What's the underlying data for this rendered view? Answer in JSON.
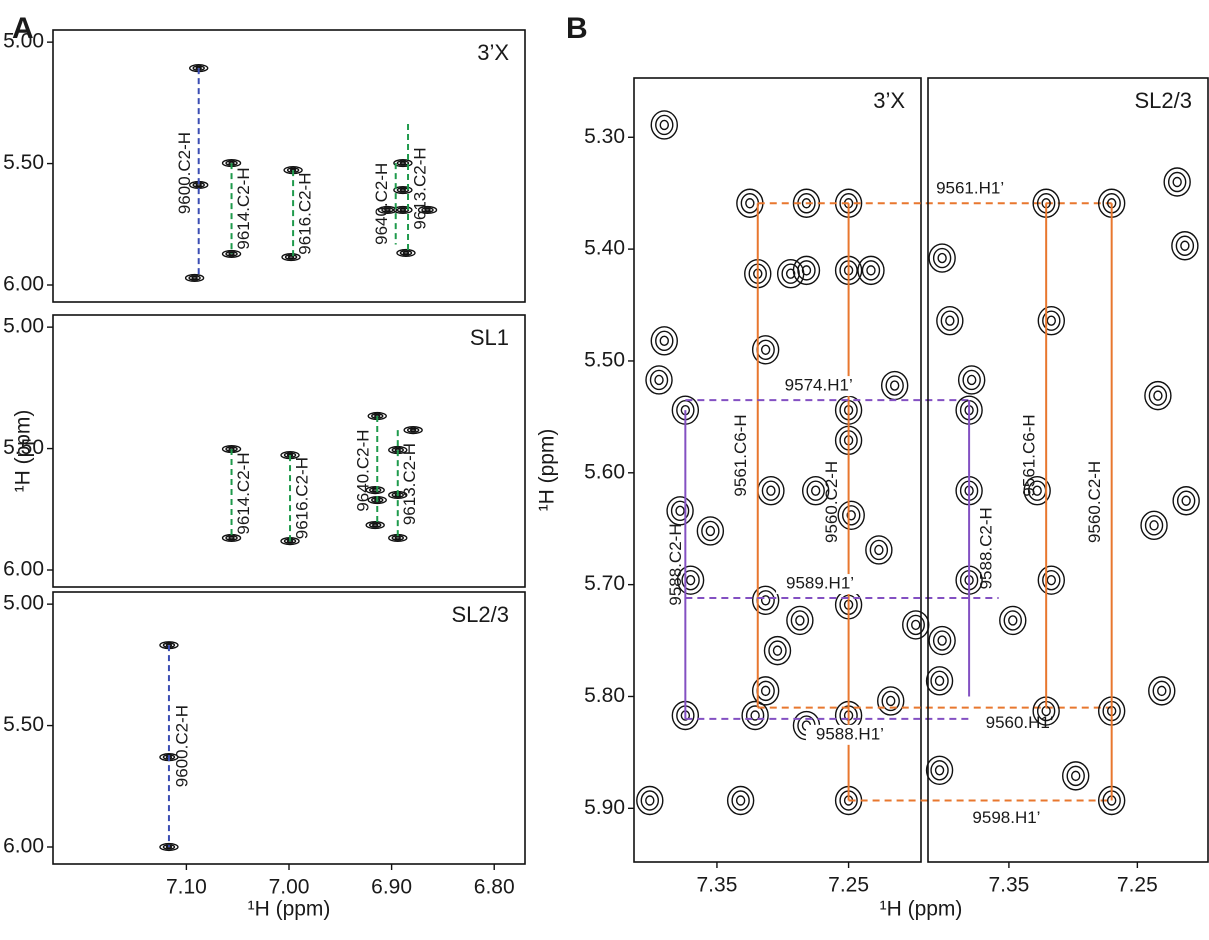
{
  "panel_labels": [
    "A",
    "B"
  ],
  "chart_data": [
    {
      "type": "scatter",
      "title": "3’X",
      "xlim": [
        7.23,
        6.77
      ],
      "ylim": [
        4.95,
        6.07
      ],
      "yticks": [
        {
          "value": 5,
          "label": "5.00"
        },
        {
          "value": 5.5,
          "label": "5.50"
        },
        {
          "value": 6,
          "label": "6.00"
        }
      ],
      "x": [
        7.088,
        7.088,
        7.092,
        7.056,
        7.056,
        6.996,
        6.998,
        6.889,
        6.889,
        6.889,
        6.904,
        6.865,
        6.886
      ],
      "values": [
        5.107,
        5.588,
        5.971,
        5.498,
        5.872,
        5.527,
        5.885,
        5.498,
        5.609,
        5.691,
        5.691,
        5.691,
        5.868
      ],
      "vlines": [
        {
          "label": "9600.C2-H",
          "color": "#3b4db3",
          "x": 7.088,
          "y": [
            5.107,
            5.971
          ]
        },
        {
          "label": "9614.C2-H",
          "color": "#1f9a4c",
          "x": 7.056,
          "y": [
            5.498,
            5.872
          ]
        },
        {
          "label": "9616.C2-H",
          "color": "#1f9a4c",
          "x": 6.996,
          "y": [
            5.527,
            5.885
          ]
        },
        {
          "label": "9640.C2-H",
          "color": "#1f9a4c",
          "x": 6.896,
          "y": [
            5.498,
            5.833
          ]
        },
        {
          "label": "9613.C2-H",
          "color": "#1f9a4c",
          "x": 6.884,
          "y": [
            5.337,
            5.868
          ]
        }
      ]
    },
    {
      "type": "scatter",
      "title": "SL1",
      "xlim": [
        7.23,
        6.77
      ],
      "ylim": [
        4.95,
        6.07
      ],
      "ylabel": "¹H (ppm)",
      "yticks": [
        {
          "value": 5,
          "label": "5.00"
        },
        {
          "value": 5.5,
          "label": "5.50"
        },
        {
          "value": 6,
          "label": "6.00"
        }
      ],
      "x": [
        7.056,
        7.056,
        6.999,
        6.999,
        6.914,
        6.916,
        6.914,
        6.916,
        6.894,
        6.894,
        6.894,
        6.879
      ],
      "values": [
        5.502,
        5.868,
        5.527,
        5.881,
        5.366,
        5.671,
        5.712,
        5.815,
        5.506,
        5.691,
        5.868,
        5.424
      ],
      "vlines": [
        {
          "label": "9614.C2-H",
          "color": "#1f9a4c",
          "x": 7.056,
          "y": [
            5.502,
            5.868
          ]
        },
        {
          "label": "9616.C2-H",
          "color": "#1f9a4c",
          "x": 6.999,
          "y": [
            5.527,
            5.881
          ]
        },
        {
          "label": "9640.C2-H",
          "color": "#1f9a4c",
          "x": 6.914,
          "y": [
            5.366,
            5.815
          ]
        },
        {
          "label": "9613.C2-H",
          "color": "#1f9a4c",
          "x": 6.894,
          "y": [
            5.424,
            5.868
          ]
        }
      ]
    },
    {
      "type": "scatter",
      "title": "SL2/3",
      "xlim": [
        7.23,
        6.77
      ],
      "ylim": [
        4.95,
        6.07
      ],
      "xlabel": "¹H (ppm)",
      "xticks": [
        {
          "value": 7.1,
          "label": "7.10"
        },
        {
          "value": 7,
          "label": "7.00"
        },
        {
          "value": 6.9,
          "label": "6.90"
        },
        {
          "value": 6.8,
          "label": "6.80"
        }
      ],
      "yticks": [
        {
          "value": 5,
          "label": "5.00"
        },
        {
          "value": 5.5,
          "label": "5.50"
        },
        {
          "value": 6,
          "label": "6.00"
        }
      ],
      "x": [
        7.117,
        7.117,
        7.117
      ],
      "values": [
        5.169,
        5.63,
        6.0
      ],
      "vlines": [
        {
          "label": "9600.C2-H",
          "color": "#3b4db3",
          "x": 7.117,
          "y": [
            5.169,
            6.0
          ]
        }
      ]
    },
    {
      "type": "scatter",
      "title": "3’X",
      "xlim": [
        7.413,
        7.195
      ],
      "ylim": [
        5.247,
        5.948
      ],
      "xlabel": "¹H (ppm)",
      "ylabel": "¹H (ppm)",
      "xticks": [
        7.35,
        7.25
      ],
      "yticks": [
        {
          "value": 5.3,
          "label": "5.30"
        },
        {
          "value": 5.4,
          "label": "5.40"
        },
        {
          "value": 5.5,
          "label": "5.50"
        },
        {
          "value": 5.6,
          "label": "5.60"
        },
        {
          "value": 5.7,
          "label": "5.70"
        },
        {
          "value": 5.8,
          "label": "5.80"
        },
        {
          "value": 5.9,
          "label": "5.90"
        }
      ],
      "x": [
        7.39,
        7.325,
        7.282,
        7.25,
        7.319,
        7.294,
        7.282,
        7.25,
        7.233,
        7.39,
        7.313,
        7.394,
        7.374,
        7.25,
        7.215,
        7.25,
        7.309,
        7.378,
        7.355,
        7.275,
        7.248,
        7.227,
        7.37,
        7.313,
        7.287,
        7.304,
        7.25,
        7.374,
        7.321,
        7.313,
        7.25,
        7.282,
        7.218,
        7.401,
        7.332,
        7.25,
        7.199
      ],
      "values": [
        5.289,
        5.359,
        5.359,
        5.359,
        5.422,
        5.422,
        5.419,
        5.419,
        5.419,
        5.482,
        5.49,
        5.517,
        5.544,
        5.544,
        5.522,
        5.571,
        5.616,
        5.634,
        5.652,
        5.616,
        5.638,
        5.669,
        5.696,
        5.714,
        5.732,
        5.759,
        5.718,
        5.817,
        5.817,
        5.795,
        5.817,
        5.826,
        5.804,
        5.893,
        5.893,
        5.893,
        5.736
      ],
      "vlines": [
        {
          "label": "9561.C6-H",
          "color": "#e8772e",
          "x": 7.319,
          "y": [
            5.359,
            5.81
          ]
        },
        {
          "label": "9560.C2-H",
          "color": "#e8772e",
          "x": 7.25,
          "y": [
            5.359,
            5.893
          ]
        },
        {
          "label": "9588.C2-H",
          "color": "#8350c2",
          "x": 7.374,
          "y": [
            5.544,
            5.82
          ]
        }
      ],
      "hlines": [
        {
          "label": "9561.H1’",
          "color": "#e8772e",
          "y": 5.359,
          "x": [
            7.319,
            7.27
          ]
        },
        {
          "label": "9574.H1’",
          "color": "#8350c2",
          "y": 5.535,
          "x": [
            7.374,
            7.381
          ]
        },
        {
          "label": "9589.H1’",
          "color": "#8350c2",
          "y": 5.712,
          "x": [
            7.374,
            7.358
          ]
        },
        {
          "label": "9588.H1’",
          "color": "#8350c2",
          "y": 5.82,
          "x": [
            7.374,
            7.381
          ]
        },
        {
          "label": "9560.H1’",
          "color": "#e8772e",
          "y": 5.81,
          "x": [
            7.319,
            7.27
          ]
        },
        {
          "label": "9598.H1’",
          "color": "#e8772e",
          "y": 5.893,
          "x": [
            7.25,
            7.27
          ]
        }
      ]
    },
    {
      "type": "scatter",
      "title": "SL2/3",
      "xlim": [
        7.413,
        7.195
      ],
      "ylim": [
        5.247,
        5.948
      ],
      "xticks": [
        7.35,
        7.25
      ],
      "x": [
        7.321,
        7.27,
        7.219,
        7.213,
        7.402,
        7.396,
        7.317,
        7.379,
        7.381,
        7.234,
        7.328,
        7.381,
        7.212,
        7.237,
        7.381,
        7.317,
        7.402,
        7.404,
        7.321,
        7.27,
        7.231,
        7.404,
        7.27,
        7.298,
        7.347
      ],
      "values": [
        5.359,
        5.359,
        5.34,
        5.397,
        5.408,
        5.464,
        5.464,
        5.517,
        5.544,
        5.531,
        5.616,
        5.616,
        5.625,
        5.647,
        5.696,
        5.696,
        5.75,
        5.786,
        5.813,
        5.813,
        5.795,
        5.866,
        5.893,
        5.871,
        5.732
      ],
      "vlines": [
        {
          "label": "9561.C6-H",
          "color": "#e8772e",
          "x": 7.321,
          "y": [
            5.359,
            5.81
          ]
        },
        {
          "label": "9560.C2-H",
          "color": "#e8772e",
          "x": 7.27,
          "y": [
            5.359,
            5.893
          ]
        },
        {
          "label": "9588.C2-H",
          "color": "#8350c2",
          "x": 7.381,
          "y": [
            5.535,
            5.8
          ]
        }
      ]
    }
  ]
}
